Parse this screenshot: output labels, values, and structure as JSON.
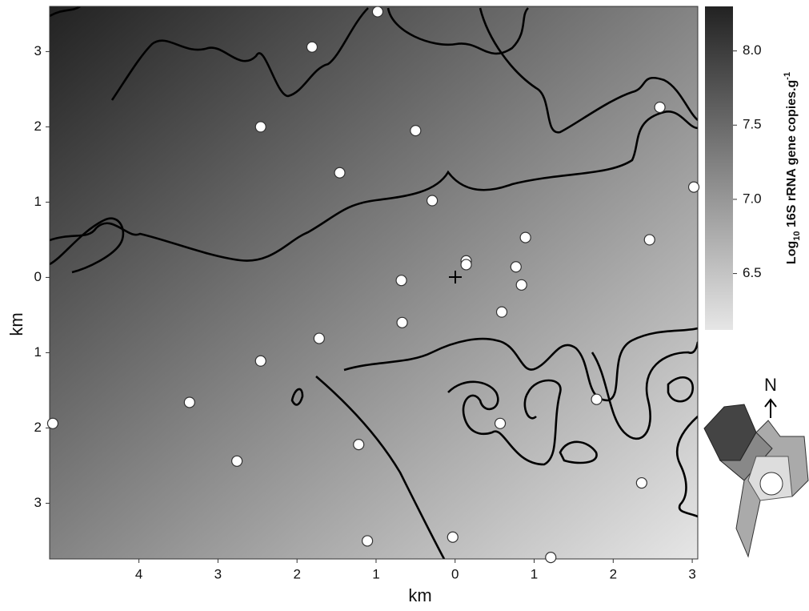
{
  "chart_data": {
    "type": "scatter",
    "x_label": "km",
    "y_label": "km",
    "x": [
      -0.98,
      -1.81,
      -2.46,
      -0.5,
      -1.46,
      -0.29,
      2.59,
      3.02,
      2.46,
      0.89,
      0.14,
      0.14,
      0.77,
      0.84,
      -0.68,
      0.59,
      -0.67,
      -1.72,
      -2.46,
      -3.36,
      -5.09,
      -2.76,
      -1.22,
      0.57,
      1.79,
      2.36,
      -1.11,
      -0.03,
      1.21
    ],
    "values": [
      3.53,
      3.06,
      2.0,
      1.95,
      1.39,
      1.02,
      2.26,
      1.2,
      0.5,
      0.53,
      0.22,
      0.17,
      0.14,
      -0.1,
      -0.04,
      -0.46,
      -0.6,
      -0.81,
      -1.11,
      -1.66,
      -1.94,
      -2.44,
      -2.22,
      -1.94,
      -1.62,
      -2.73,
      -3.5,
      -3.45,
      -3.72
    ],
    "color": "#ffffff",
    "xlim": [
      -5.13,
      3.07
    ],
    "ylim": [
      -3.74,
      3.6
    ],
    "xticks": [
      {
        "value": -4,
        "label": "4"
      },
      {
        "value": -3,
        "label": "3"
      },
      {
        "value": -2,
        "label": "2"
      },
      {
        "value": -1,
        "label": "1"
      },
      0,
      1,
      2,
      3
    ],
    "yticks": [
      3,
      2,
      1,
      0,
      {
        "value": -1,
        "label": "1"
      },
      {
        "value": -2,
        "label": "2"
      },
      {
        "value": -3,
        "label": "3"
      }
    ],
    "colorbar": {
      "label_parts": [
        "Log",
        "10",
        " 16S rRNA gene copies.g",
        "-1"
      ],
      "clim": [
        6.12,
        8.3
      ],
      "cticks": [
        {
          "value": 8,
          "label": "8.0"
        },
        7.5,
        {
          "value": 7,
          "label": "7.0"
        },
        6.5
      ],
      "colormap": [
        "#e6e6e6",
        "#222222"
      ]
    },
    "compass_label": "N"
  }
}
